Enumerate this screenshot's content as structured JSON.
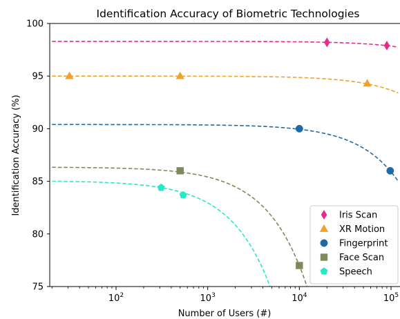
{
  "chart_data": {
    "type": "scatter",
    "title": "Identification Accuracy of Biometric Technologies",
    "xlabel": "Number of Users (#)",
    "ylabel": "Identification Accuracy (%)",
    "x_scale": "log",
    "xlim": [
      20,
      120000
    ],
    "ylim": [
      75,
      100
    ],
    "x_ticks": [
      {
        "value": 100,
        "base": "10",
        "exp": "2"
      },
      {
        "value": 1000,
        "base": "10",
        "exp": "3"
      },
      {
        "value": 10000,
        "base": "10",
        "exp": "4"
      },
      {
        "value": 100000,
        "base": "10",
        "exp": "5"
      }
    ],
    "y_ticks": [
      "75",
      "80",
      "85",
      "90",
      "95",
      "100"
    ],
    "grid": false,
    "legend_position": "bottom-right",
    "series": [
      {
        "name": "Iris Scan",
        "color": "#e7298a",
        "marker": "diamond",
        "points": [
          [
            20000,
            98.2
          ],
          [
            90000,
            97.9
          ]
        ],
        "fit": {
          "a": 98.3,
          "c": 4.5e-06
        }
      },
      {
        "name": "XR Motion",
        "color": "#f0a12c",
        "marker": "triangle",
        "points": [
          [
            31,
            95.0
          ],
          [
            500,
            95.0
          ],
          [
            55000,
            94.3
          ]
        ],
        "fit": {
          "a": 95.0,
          "c": 1.34e-05
        }
      },
      {
        "name": "Fingerprint",
        "color": "#1f6aa5",
        "marker": "circle",
        "points": [
          [
            10000,
            90.0
          ],
          [
            98000,
            86.0
          ]
        ],
        "fit": {
          "a": 90.4,
          "c": 4.5e-05
        }
      },
      {
        "name": "Face Scan",
        "color": "#7d8a5b",
        "marker": "square",
        "points": [
          [
            500,
            86.0
          ],
          [
            10000,
            77.0
          ]
        ],
        "fit": {
          "a": 86.35,
          "c": 0.000937
        }
      },
      {
        "name": "Speech",
        "color": "#2ae8c6",
        "marker": "pentagon",
        "points": [
          [
            310,
            84.4
          ],
          [
            540,
            83.7
          ]
        ],
        "fit": {
          "a": 85.05,
          "c": 0.0021
        }
      }
    ]
  }
}
